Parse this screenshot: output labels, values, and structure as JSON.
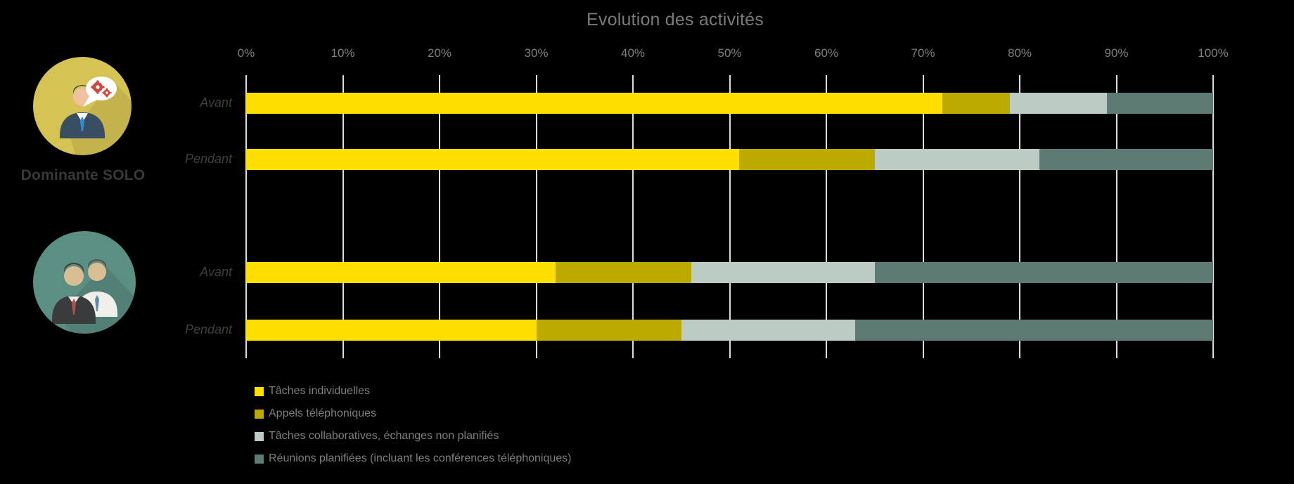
{
  "title": "Evolution des activités",
  "solo_group_label": "Dominante SOLO",
  "colors": {
    "background": "#000000",
    "gridline": "#DCDCDC",
    "title_text": "#7A7A7A",
    "tick_text": "#7F7F7F",
    "category_text": "#3F3F3F",
    "legend_text": "#7F7F7F",
    "solo_badge_circle": "#D5C353",
    "team_badge_circle": "#5C8F84"
  },
  "chart_data": {
    "type": "bar",
    "orientation": "horizontal",
    "stacked": true,
    "units": "percent",
    "title": "Evolution des activités",
    "xlim": [
      0,
      100
    ],
    "x_ticks": [
      "0%",
      "10%",
      "20%",
      "30%",
      "40%",
      "50%",
      "60%",
      "70%",
      "80%",
      "90%",
      "100%"
    ],
    "grid": true,
    "legend_position": "bottom-left",
    "series": [
      {
        "name": "Tâches individuelles",
        "color": "#FFDF00"
      },
      {
        "name": "Appels téléphoniques",
        "color": "#BCAA00"
      },
      {
        "name": "Tâches collaboratives, échanges non planifiés",
        "color": "#BCCBC4"
      },
      {
        "name": "Réunions planifiées (incluant les conférences téléphoniques)",
        "color": "#5E7A74"
      }
    ],
    "groups": [
      {
        "label": "Dominante SOLO",
        "icon": "solo-worker-icon",
        "rows": [
          {
            "category": "Avant",
            "values": [
              72,
              7,
              10,
              11
            ]
          },
          {
            "category": "Pendant",
            "values": [
              51,
              14,
              17,
              18
            ]
          }
        ]
      },
      {
        "label": "",
        "icon": "team-icon",
        "rows": [
          {
            "category": "Avant",
            "values": [
              32,
              14,
              19,
              35
            ]
          },
          {
            "category": "Pendant",
            "values": [
              30,
              15,
              18,
              37
            ]
          }
        ]
      }
    ]
  }
}
